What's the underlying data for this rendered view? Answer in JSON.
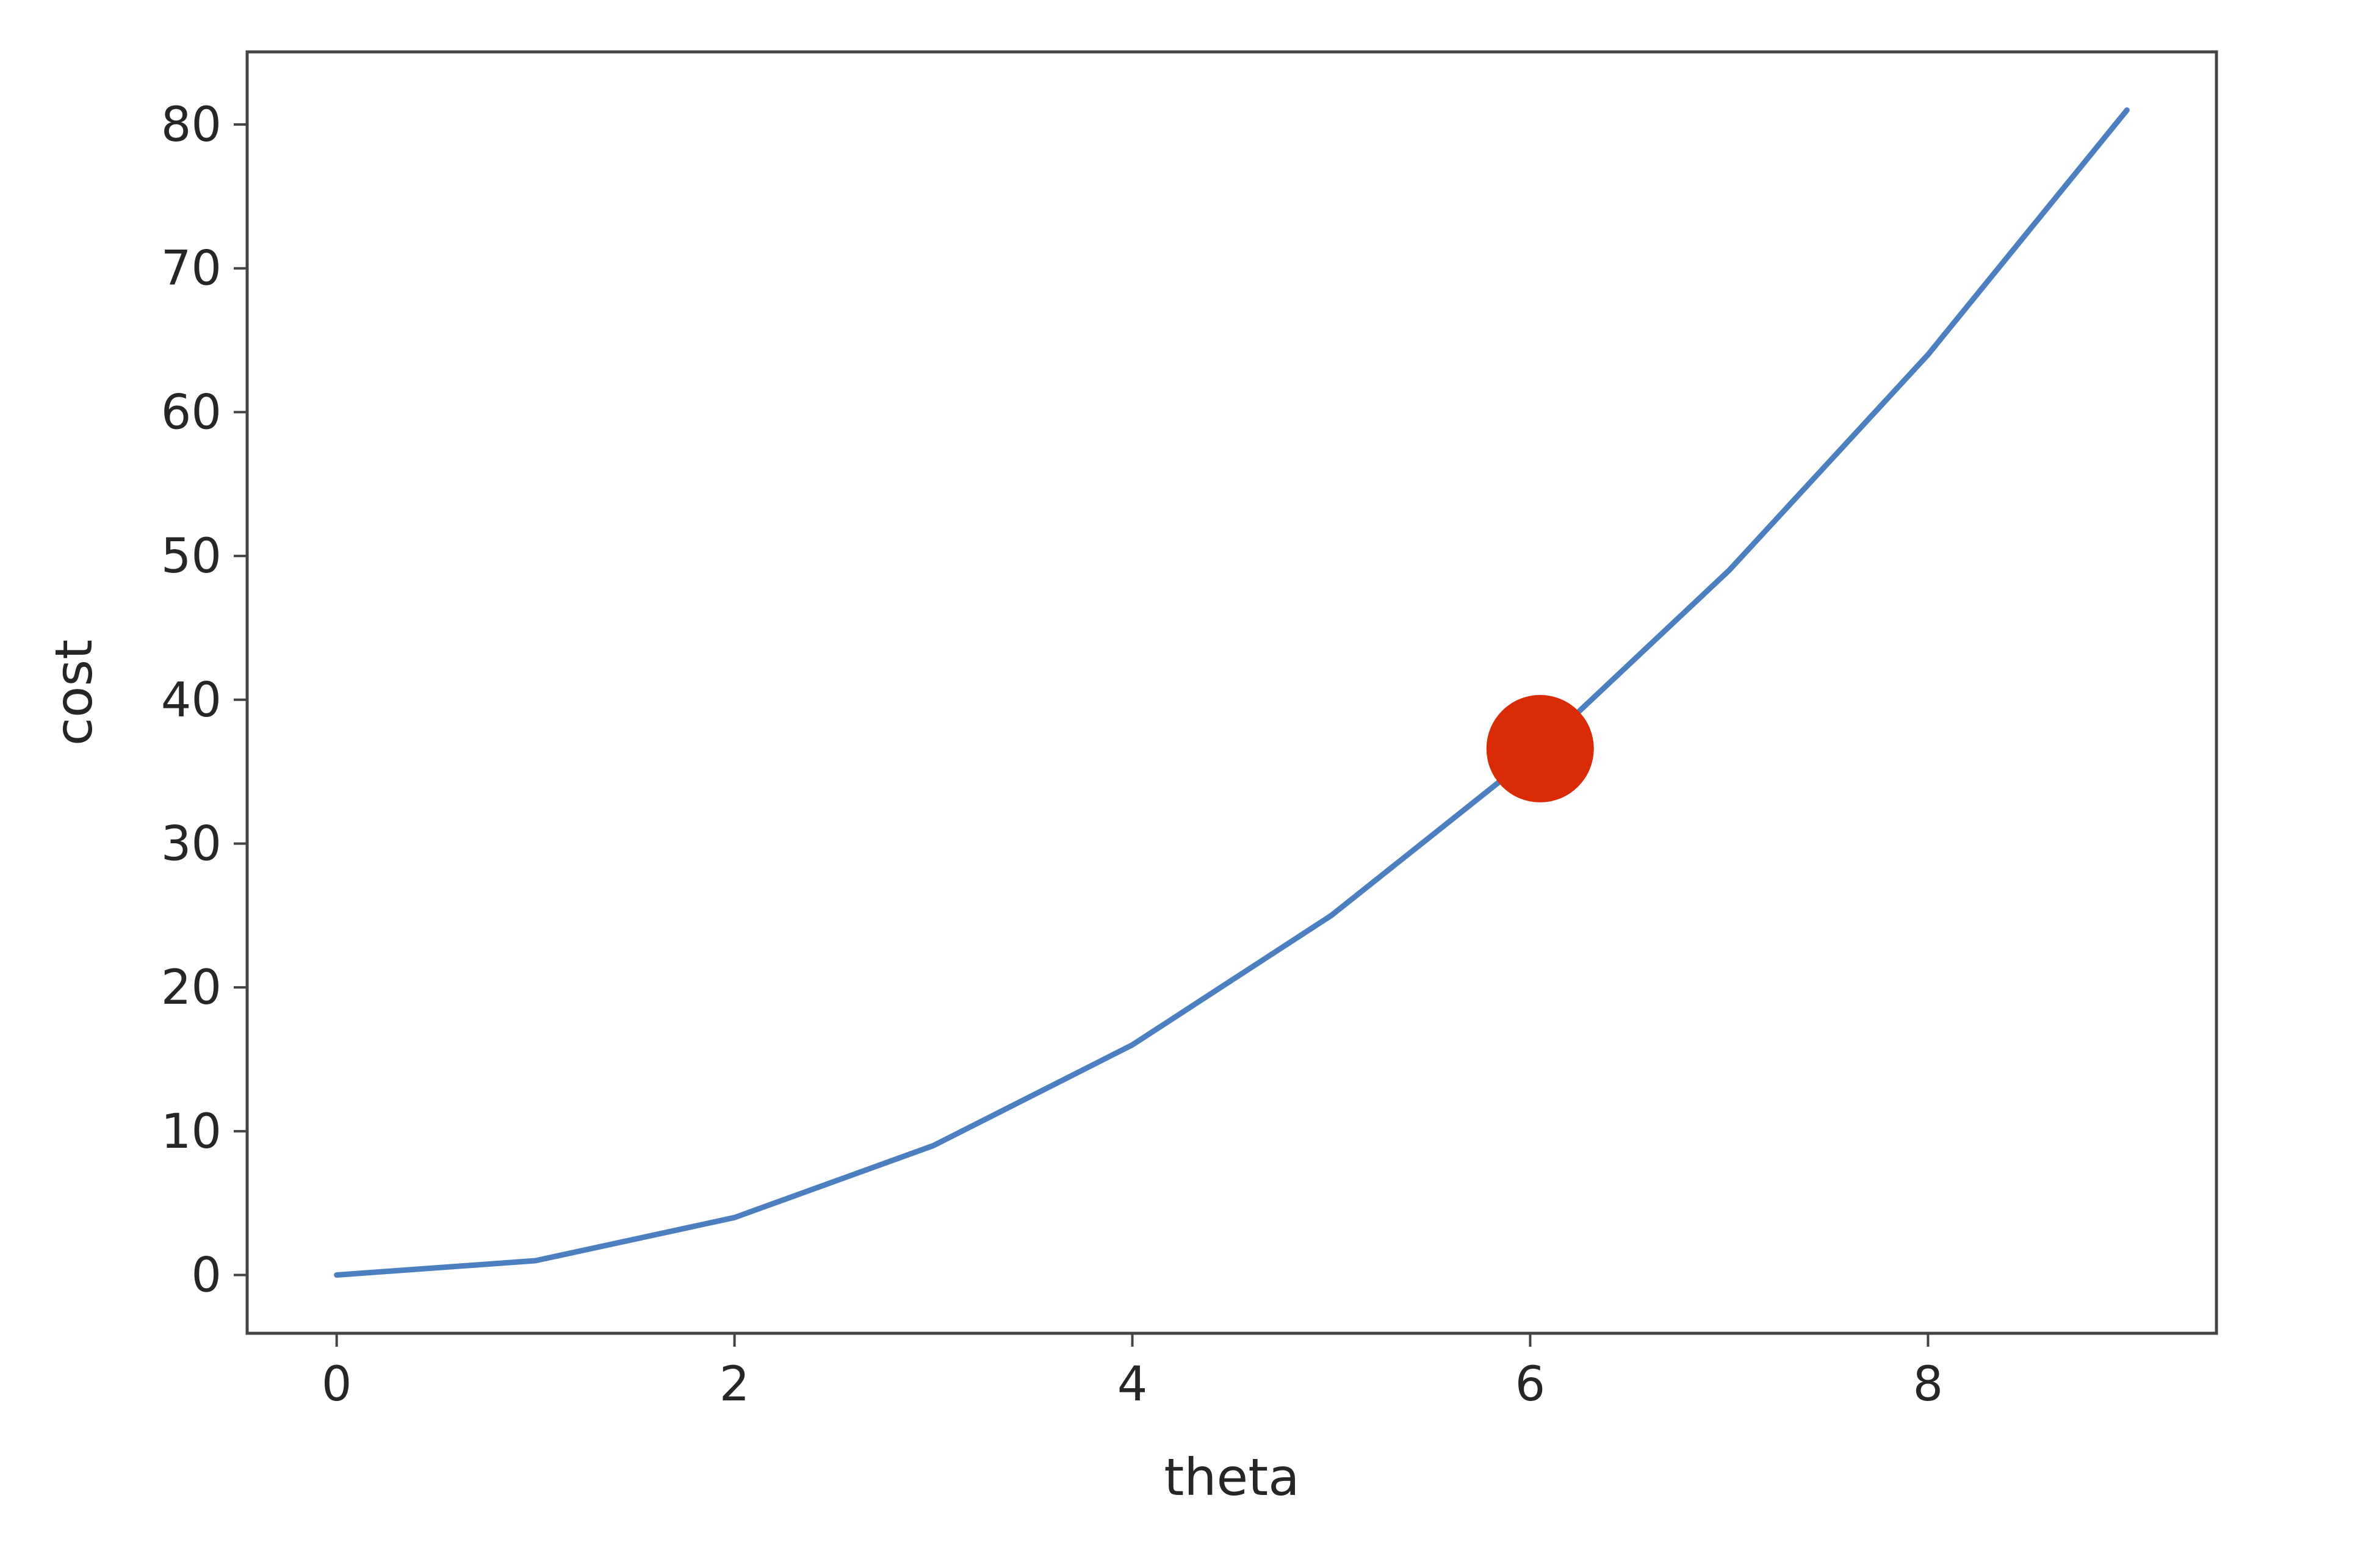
{
  "chart_data": {
    "type": "line",
    "xlabel": "theta",
    "ylabel": "cost",
    "xlim": [
      -0.45,
      9.45
    ],
    "ylim": [
      -4.05,
      85.05
    ],
    "x_ticks": [
      0,
      2,
      4,
      6,
      8
    ],
    "y_ticks": [
      0,
      10,
      20,
      30,
      40,
      50,
      60,
      70,
      80
    ],
    "grid": false,
    "series": [
      {
        "color": "#4c7fbf",
        "x": [
          0,
          1,
          2,
          3,
          4,
          5,
          6,
          7,
          8,
          9
        ],
        "y": [
          0,
          1,
          4,
          9,
          16,
          25,
          36,
          49,
          64,
          81
        ]
      }
    ],
    "highlight_point": {
      "x": 6.05,
      "y": 36.6,
      "color": "#d92b05"
    }
  }
}
